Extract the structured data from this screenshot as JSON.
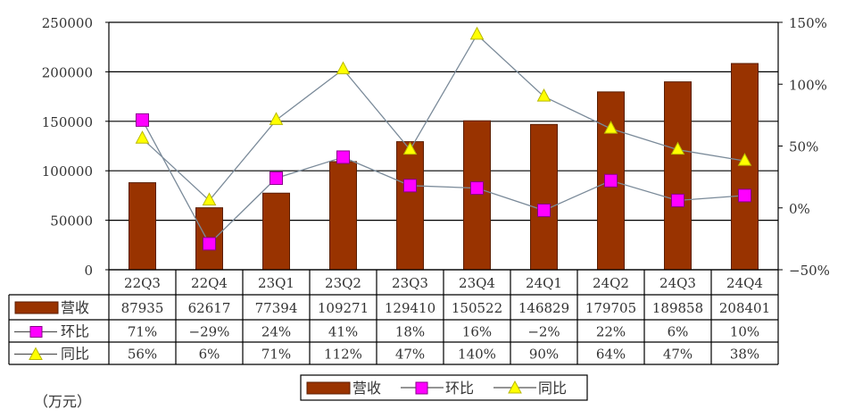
{
  "chart_data": {
    "type": "bar",
    "title": "",
    "unit_label": "（万元）",
    "categories": [
      "22Q3",
      "22Q4",
      "23Q1",
      "23Q2",
      "23Q3",
      "23Q4",
      "24Q1",
      "24Q2",
      "24Q3",
      "24Q4"
    ],
    "series": [
      {
        "name": "营收",
        "type": "bar",
        "axis": "left",
        "color": "#993300",
        "values": [
          87935,
          62617,
          77394,
          109271,
          129410,
          150522,
          146829,
          179705,
          189858,
          208401
        ],
        "display": [
          "87935",
          "62617",
          "77394",
          "109271",
          "129410",
          "150522",
          "146829",
          "179705",
          "189858",
          "208401"
        ]
      },
      {
        "name": "环比",
        "type": "line",
        "axis": "right",
        "marker": "square",
        "color": "#ff00ff",
        "values": [
          71,
          -29,
          24,
          41,
          18,
          16,
          -2,
          22,
          6,
          10
        ],
        "display": [
          "71%",
          "−29%",
          "24%",
          "41%",
          "18%",
          "16%",
          "−2%",
          "22%",
          "6%",
          "10%"
        ]
      },
      {
        "name": "同比",
        "type": "line",
        "axis": "right",
        "marker": "triangle",
        "color": "#ffff00",
        "values": [
          56,
          6,
          71,
          112,
          47,
          140,
          90,
          64,
          47,
          38
        ],
        "display": [
          "56%",
          "6%",
          "71%",
          "112%",
          "47%",
          "140%",
          "90%",
          "64%",
          "47%",
          "38%"
        ]
      }
    ],
    "left_axis": {
      "ticks": [
        "250000",
        "200000",
        "150000",
        "100000",
        "50000",
        "0"
      ],
      "ylim": [
        0,
        250000
      ]
    },
    "right_axis": {
      "ticks": [
        "150%",
        "100%",
        "50%",
        "0%",
        "−50%"
      ],
      "ylim": [
        -50,
        150
      ]
    },
    "grid": true,
    "legend": {
      "position": "bottom",
      "items": [
        "营收",
        "环比",
        "同比"
      ]
    },
    "data_table": true
  }
}
